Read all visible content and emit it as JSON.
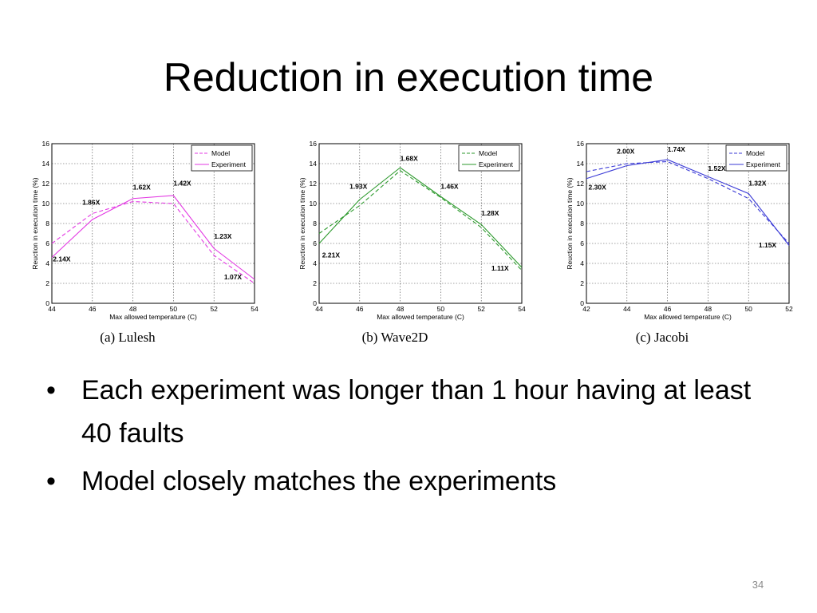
{
  "title": "Reduction in execution time",
  "bullets": [
    "Each experiment was longer than 1 hour having at least 40 faults",
    "Model closely matches the experiments"
  ],
  "bullet_symbol": "•",
  "page_number": "34",
  "chart_data": [
    {
      "type": "line",
      "caption": "(a) Lulesh",
      "xlabel": "Max allowed temperature (C)",
      "ylabel": "Reuction in execution time (%)",
      "xlim": [
        44,
        54
      ],
      "ylim": [
        0,
        16
      ],
      "xticks": [
        44,
        46,
        48,
        50,
        52,
        54
      ],
      "yticks": [
        0,
        2,
        4,
        6,
        8,
        10,
        12,
        14,
        16
      ],
      "grid": true,
      "legend_position": "top-right",
      "x": [
        44,
        46,
        48,
        50,
        52,
        54
      ],
      "series": [
        {
          "name": "Model",
          "dashed": true,
          "values": [
            6.0,
            9.0,
            10.2,
            10.0,
            4.8,
            2.0
          ]
        },
        {
          "name": "Experiment",
          "dashed": false,
          "values": [
            4.6,
            8.4,
            10.5,
            10.8,
            5.5,
            2.4
          ]
        }
      ],
      "annotations": [
        {
          "text": "2.14X",
          "x": 44.05,
          "y": 4.2
        },
        {
          "text": "1.86X",
          "x": 45.5,
          "y": 9.9
        },
        {
          "text": "1.62X",
          "x": 48.0,
          "y": 11.4
        },
        {
          "text": "1.42X",
          "x": 50.0,
          "y": 11.8
        },
        {
          "text": "1.23X",
          "x": 52.0,
          "y": 6.5
        },
        {
          "text": "1.07X",
          "x": 52.5,
          "y": 2.4
        }
      ],
      "color": "#e339e3"
    },
    {
      "type": "line",
      "caption": "(b) Wave2D",
      "xlabel": "Max allowed temperature (C)",
      "ylabel": "Reuction in execution time (%)",
      "xlim": [
        44,
        54
      ],
      "ylim": [
        0,
        16
      ],
      "xticks": [
        44,
        46,
        48,
        50,
        52,
        54
      ],
      "yticks": [
        0,
        2,
        4,
        6,
        8,
        10,
        12,
        14,
        16
      ],
      "grid": true,
      "legend_position": "top-right",
      "x": [
        44,
        46,
        48,
        50,
        52,
        54
      ],
      "series": [
        {
          "name": "Model",
          "dashed": true,
          "values": [
            7.0,
            9.8,
            13.3,
            10.6,
            7.6,
            3.3
          ]
        },
        {
          "name": "Experiment",
          "dashed": false,
          "values": [
            6.0,
            10.4,
            13.6,
            10.7,
            7.9,
            3.6
          ]
        }
      ],
      "annotations": [
        {
          "text": "2.21X",
          "x": 44.15,
          "y": 4.6
        },
        {
          "text": "1.93X",
          "x": 45.5,
          "y": 11.5
        },
        {
          "text": "1.68X",
          "x": 48.0,
          "y": 14.3
        },
        {
          "text": "1.46X",
          "x": 50.0,
          "y": 11.5
        },
        {
          "text": "1.28X",
          "x": 52.0,
          "y": 8.8
        },
        {
          "text": "1.11X",
          "x": 52.5,
          "y": 3.3
        }
      ],
      "color": "#2e9a2e"
    },
    {
      "type": "line",
      "caption": "(c) Jacobi",
      "xlabel": "Max allowed temperature (C)",
      "ylabel": "Reuction in execution time (%)",
      "xlim": [
        42,
        52
      ],
      "ylim": [
        0,
        16
      ],
      "xticks": [
        42,
        44,
        46,
        48,
        50,
        52
      ],
      "yticks": [
        0,
        2,
        4,
        6,
        8,
        10,
        12,
        14,
        16
      ],
      "grid": true,
      "legend_position": "top-right",
      "x": [
        42,
        44,
        46,
        48,
        50,
        52
      ],
      "series": [
        {
          "name": "Model",
          "dashed": true,
          "values": [
            13.2,
            14.0,
            14.2,
            12.5,
            10.5,
            6.0
          ]
        },
        {
          "name": "Experiment",
          "dashed": false,
          "values": [
            12.5,
            13.8,
            14.4,
            12.7,
            11.0,
            5.8
          ]
        }
      ],
      "annotations": [
        {
          "text": "2.30X",
          "x": 42.1,
          "y": 11.4
        },
        {
          "text": "2.00X",
          "x": 43.5,
          "y": 15.0
        },
        {
          "text": "1.74X",
          "x": 46.0,
          "y": 15.2
        },
        {
          "text": "1.52X",
          "x": 48.0,
          "y": 13.3
        },
        {
          "text": "1.32X",
          "x": 50.0,
          "y": 11.8
        },
        {
          "text": "1.15X",
          "x": 50.5,
          "y": 5.6
        }
      ],
      "color": "#3a3ad6"
    }
  ]
}
